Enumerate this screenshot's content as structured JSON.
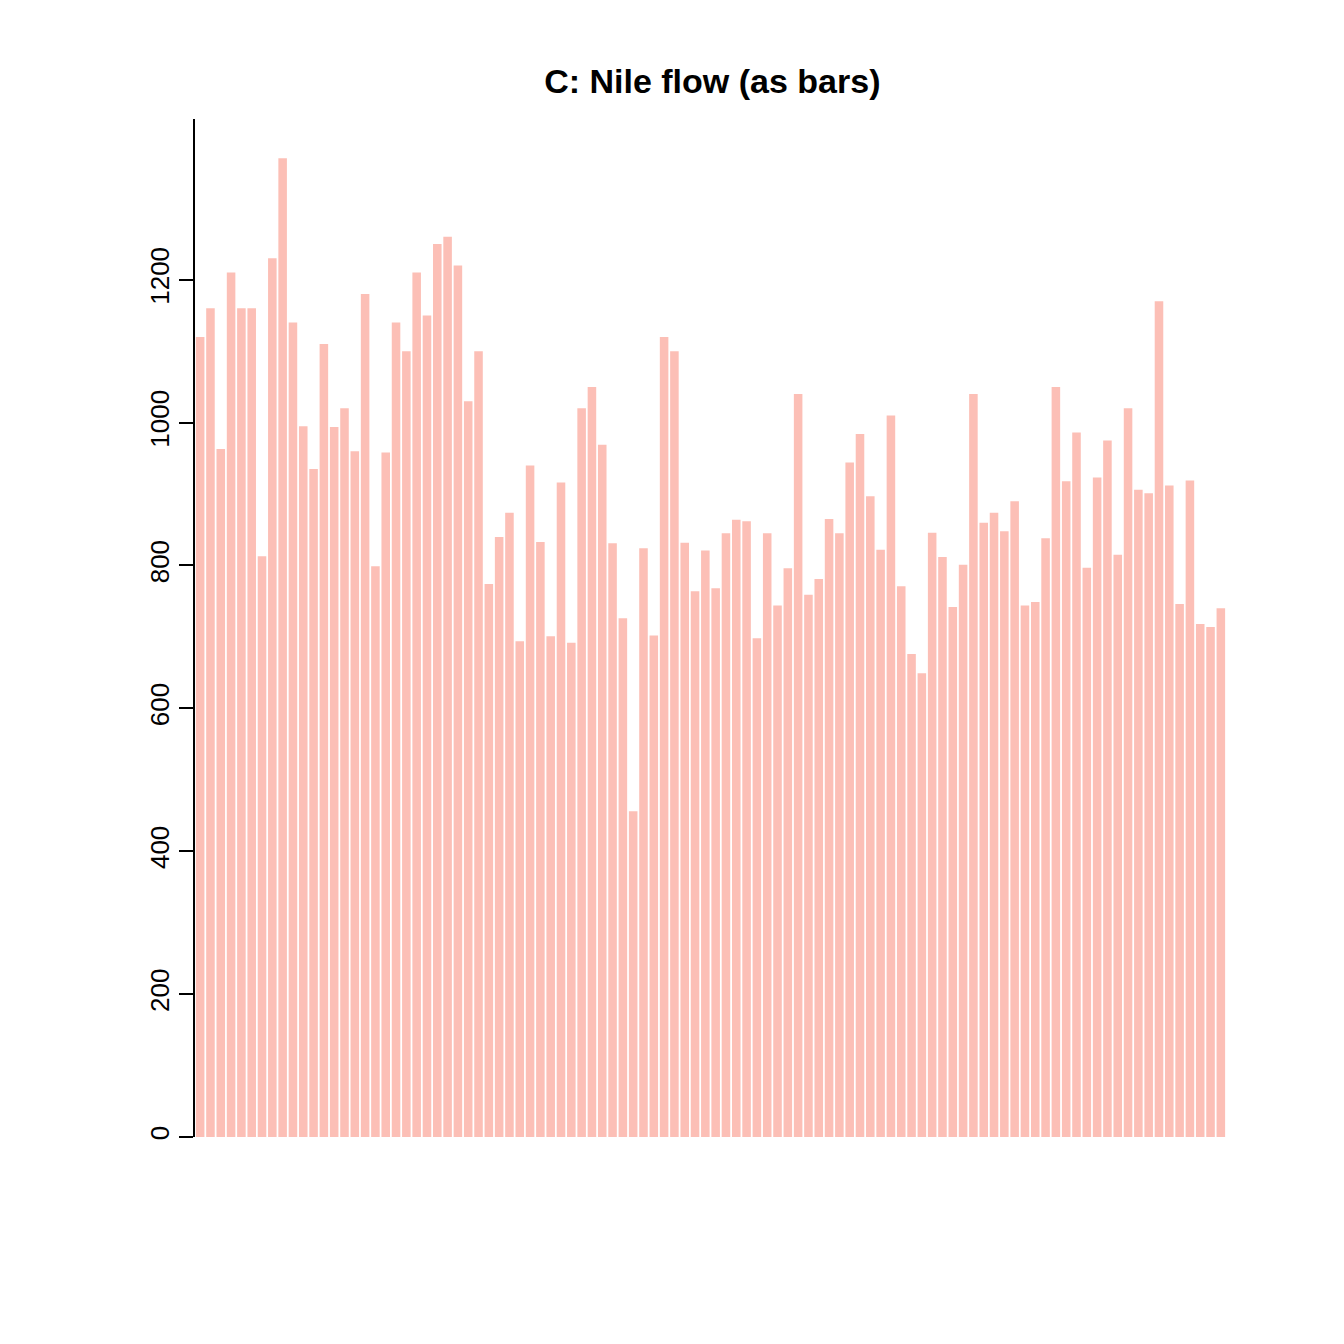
{
  "chart_data": {
    "type": "bar",
    "title": "C: Nile flow (as bars)",
    "categories": [
      null,
      null,
      null,
      null,
      null,
      null,
      null,
      null,
      null,
      null,
      null,
      null,
      null,
      null,
      null,
      null,
      null,
      null,
      null,
      null,
      null,
      null,
      null,
      null,
      null,
      null,
      null,
      null,
      null,
      null,
      null,
      null,
      null,
      null,
      null,
      null,
      null,
      null,
      null,
      null,
      null,
      null,
      null,
      null,
      null,
      null,
      null,
      null,
      null,
      null,
      null,
      null,
      null,
      null,
      null,
      null,
      null,
      null,
      null,
      null,
      null,
      null,
      null,
      null,
      null,
      null,
      null,
      null,
      null,
      null,
      null,
      null,
      null,
      null,
      null,
      null,
      null,
      null,
      null,
      null,
      null,
      null,
      null,
      null,
      null,
      null,
      null,
      null,
      null,
      null,
      null,
      null,
      null,
      null,
      null,
      null,
      null,
      null,
      null,
      null
    ],
    "values": [
      1120,
      1160,
      963,
      1210,
      1160,
      1160,
      813,
      1230,
      1370,
      1140,
      995,
      935,
      1110,
      994,
      1020,
      960,
      1180,
      799,
      958,
      1140,
      1100,
      1210,
      1150,
      1250,
      1260,
      1220,
      1030,
      1100,
      774,
      840,
      874,
      694,
      940,
      833,
      701,
      916,
      692,
      1020,
      1050,
      969,
      831,
      726,
      456,
      824,
      702,
      1120,
      1100,
      832,
      764,
      821,
      768,
      845,
      864,
      862,
      698,
      845,
      744,
      796,
      1040,
      759,
      781,
      865,
      845,
      944,
      984,
      897,
      822,
      1010,
      771,
      676,
      649,
      846,
      812,
      742,
      801,
      1040,
      860,
      874,
      848,
      890,
      744,
      749,
      838,
      1050,
      918,
      986,
      797,
      923,
      975,
      815,
      1020,
      906,
      901,
      1170,
      912,
      746,
      919,
      718,
      714,
      740
    ],
    "color": "#fcbfb6",
    "ylim": [
      0,
      1425
    ],
    "yticks": [
      0,
      200,
      400,
      600,
      800,
      1000,
      1200
    ],
    "grid": false,
    "tick_labels": "y"
  }
}
